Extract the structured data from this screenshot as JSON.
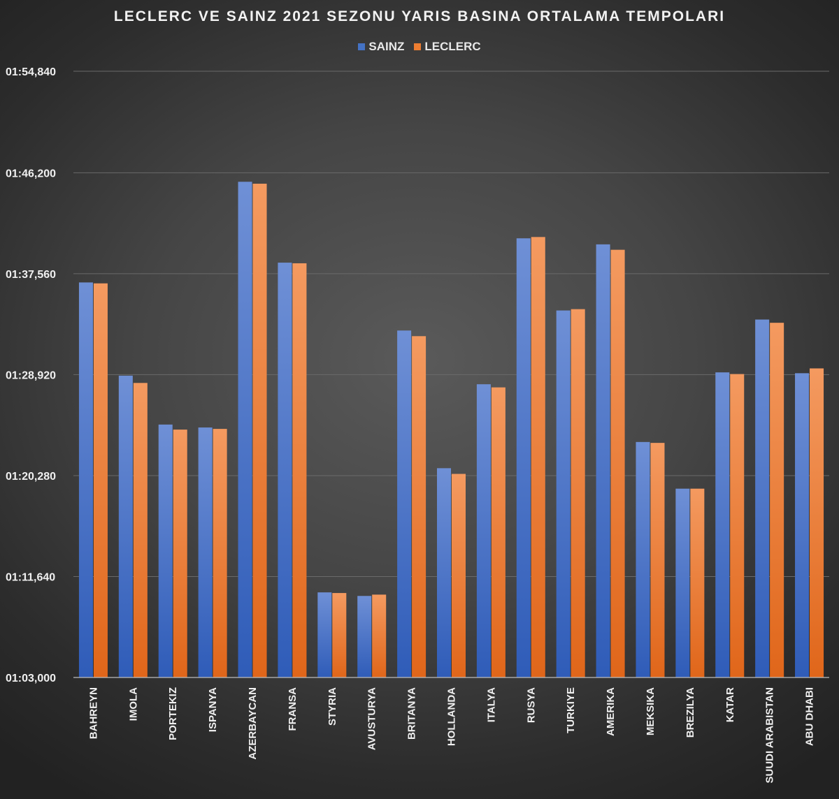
{
  "chart_data": {
    "type": "bar",
    "title": "LECLERC VE SAINZ 2021 SEZONU YARIS BASINA ORTALAMA TEMPOLARI",
    "xlabel": "",
    "ylabel": "",
    "legend_position": "top",
    "grid": true,
    "y_unit": "seconds",
    "ylim": [
      3780,
      6894.84
    ],
    "yticks": [
      3780,
      4298.64,
      4817.28,
      5335.92,
      5854.56,
      6373.2,
      6894.84
    ],
    "ytick_labels": [
      "01:03,000",
      "01:11,640",
      "01:20,280",
      "01:28,920",
      "01:37,560",
      "01:46,200",
      "01:54,840"
    ],
    "categories": [
      "BAHREYN",
      "IMOLA",
      "PORTEKIZ",
      "ISPANYA",
      "AZERBAYCAN",
      "FRANSA",
      "STYRIA",
      "AVUSTURYA",
      "BRITANYA",
      "HOLLANDA",
      "ITALYA",
      "RUSYA",
      "TURKIYE",
      "AMERIKA",
      "MEKSIKA",
      "BREZILYA",
      "KATAR",
      "SUUDI ARABISTAN",
      "ABU DHABI"
    ],
    "series": [
      {
        "name": "SAINZ",
        "color": "#4472C4",
        "values": [
          5809.7,
          5330.8,
          5079.5,
          5064.4,
          6326.9,
          5911.4,
          4217.2,
          4198.9,
          5562.6,
          4855.3,
          5286.6,
          6036.4,
          5665.6,
          6005.3,
          4989.9,
          4750.1,
          5347.6,
          5619.0,
          5343.3
        ]
      },
      {
        "name": "LECLERC",
        "color": "#ED7D31",
        "values": [
          5804.9,
          5293.3,
          5053.6,
          5057.2,
          6317.0,
          5908.1,
          4213.9,
          4205.7,
          5533.7,
          4826.0,
          5270.5,
          6043.1,
          5672.5,
          5977.5,
          4985.3,
          4750.1,
          5339.0,
          5602.4,
          5368.0
        ]
      }
    ]
  }
}
